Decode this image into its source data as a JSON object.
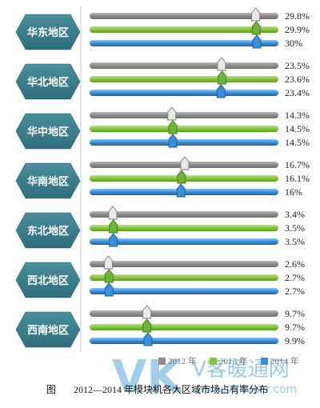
{
  "chart_data": {
    "type": "bar",
    "title": "2012—2014 年模块机各大区域市场占有率分布",
    "figure_label": "图",
    "categories": [
      "华东地区",
      "华北地区",
      "华中地区",
      "华南地区",
      "东北地区",
      "西北地区",
      "西南地区"
    ],
    "series": [
      {
        "name": "2012 年",
        "color": "#8e8e8e",
        "values": [
          29.8,
          23.5,
          14.3,
          16.7,
          3.4,
          2.6,
          9.7
        ],
        "labels": [
          "29.8%",
          "23.5%",
          "14.3%",
          "16.7%",
          "3.4%",
          "2.6%",
          "9.7%"
        ]
      },
      {
        "name": "2013 年",
        "color": "#86c440",
        "values": [
          29.9,
          23.6,
          14.5,
          16.1,
          3.5,
          2.7,
          9.7
        ],
        "labels": [
          "29.9%",
          "23.6%",
          "14.5%",
          "16.1%",
          "3.5%",
          "2.7%",
          "9.7%"
        ]
      },
      {
        "name": "2014 年",
        "color": "#3b8fd6",
        "values": [
          30,
          23.4,
          14.5,
          16,
          3.5,
          2.7,
          9.9
        ],
        "labels": [
          "30%",
          "23.4%",
          "14.5%",
          "16%",
          "3.5%",
          "2.7%",
          "9.9%"
        ]
      }
    ],
    "xlim": [
      0,
      34
    ],
    "category_color": "#3e7f8e",
    "legend_position": "bottom"
  },
  "watermark": {
    "logo": "VK",
    "text": "V客暖通网",
    "url": "www.vkhvacr.com"
  }
}
